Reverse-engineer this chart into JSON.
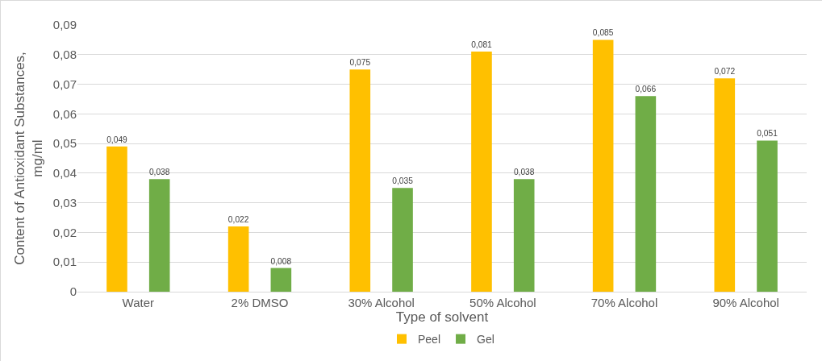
{
  "chart_data": {
    "type": "bar",
    "xlabel": "Type of solvent",
    "ylabel": "Content of Antioxidant Substances, mg/ml",
    "categories": [
      "Water",
      "2% DMSO",
      "30% Alcohol",
      "50% Alcohol",
      "70% Alcohol",
      "90% Alcohol"
    ],
    "series": [
      {
        "name": "Peel",
        "color": "#ffc000",
        "values": [
          0.049,
          0.022,
          0.075,
          0.081,
          0.085,
          0.072
        ],
        "value_labels": [
          "0,049",
          "0,022",
          "0,075",
          "0,081",
          "0,085",
          "0,072"
        ]
      },
      {
        "name": "Gel",
        "color": "#70ad47",
        "values": [
          0.038,
          0.008,
          0.035,
          0.038,
          0.066,
          0.051
        ],
        "value_labels": [
          "0,038",
          "0,008",
          "0,035",
          "0,038",
          "0,066",
          "0,051"
        ]
      }
    ],
    "ylim": [
      0,
      0.09
    ],
    "yticks": [
      {
        "value": 0,
        "label": "0"
      },
      {
        "value": 0.01,
        "label": "0,01"
      },
      {
        "value": 0.02,
        "label": "0,02"
      },
      {
        "value": 0.03,
        "label": "0,03"
      },
      {
        "value": 0.04,
        "label": "0,04"
      },
      {
        "value": 0.05,
        "label": "0,05"
      },
      {
        "value": 0.06,
        "label": "0,06"
      },
      {
        "value": 0.07,
        "label": "0,07"
      },
      {
        "value": 0.08,
        "label": "0,08"
      },
      {
        "value": 0.09,
        "label": "0,09"
      }
    ],
    "grid": "y",
    "legend": "bottom"
  }
}
